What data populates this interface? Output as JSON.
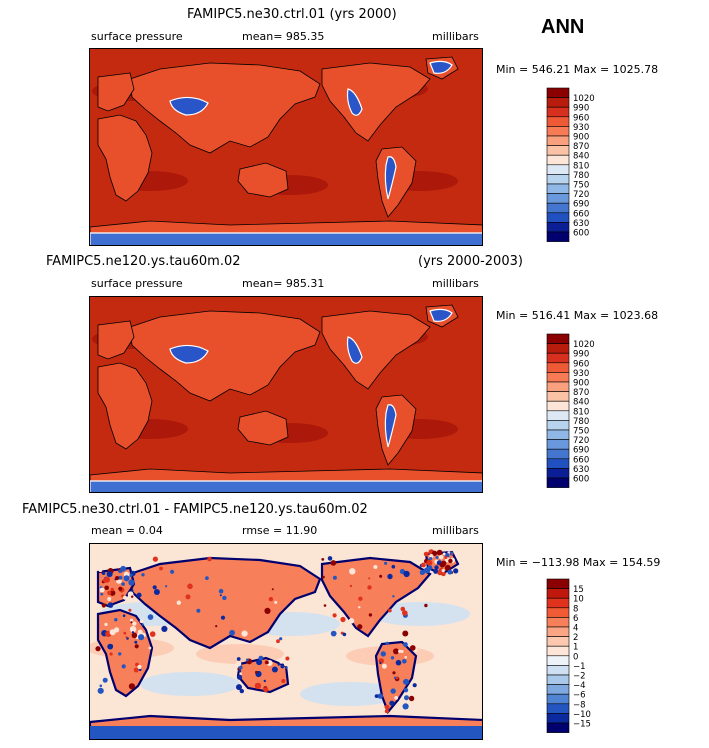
{
  "season": "ANN",
  "panels": [
    {
      "title_left": "FAMIPC5.ne30.ctrl.01 (yrs 2000)",
      "title_right": "",
      "sub_left": "surface pressure",
      "sub_mid": "mean=  985.35",
      "sub_right": "millibars",
      "minmax": "Min = 546.21  Max = 1025.78",
      "bg_color": "#c42a10",
      "levels": [
        "1020",
        "990",
        "960",
        "930",
        "900",
        "870",
        "840",
        "810",
        "780",
        "750",
        "720",
        "690",
        "660",
        "630",
        "600"
      ],
      "colors": [
        "#8b0000",
        "#b71c0c",
        "#d7301f",
        "#ee5a36",
        "#f77b55",
        "#f9a07e",
        "#fbc3a6",
        "#fde6d8",
        "#dce9f5",
        "#b8d3ee",
        "#8fb8e6",
        "#6a98dc",
        "#4476d0",
        "#2150c0",
        "#0b1e96",
        "#00006e"
      ]
    },
    {
      "title_left": "FAMIPC5.ne120.ys.tau60m.02",
      "title_right": "(yrs 2000-2003)",
      "sub_left": "surface pressure",
      "sub_mid": "mean=  985.31",
      "sub_right": "millibars",
      "minmax": "Min = 516.41  Max = 1023.68",
      "bg_color": "#c42a10",
      "levels": [
        "1020",
        "990",
        "960",
        "930",
        "900",
        "870",
        "840",
        "810",
        "780",
        "750",
        "720",
        "690",
        "660",
        "630",
        "600"
      ],
      "colors": [
        "#8b0000",
        "#b71c0c",
        "#d7301f",
        "#ee5a36",
        "#f77b55",
        "#f9a07e",
        "#fbc3a6",
        "#fde6d8",
        "#dce9f5",
        "#b8d3ee",
        "#8fb8e6",
        "#6a98dc",
        "#4476d0",
        "#2150c0",
        "#0b1e96",
        "#00006e"
      ]
    },
    {
      "title_left": "FAMIPC5.ne30.ctrl.01 - FAMIPC5.ne120.ys.tau60m.02",
      "title_right": "",
      "sub_left": "mean =    0.04",
      "sub_mid": "rmse =   11.90",
      "sub_right": "millibars",
      "minmax": "Min = −113.98  Max = 154.59",
      "bg_color": "#fbe6d6",
      "levels": [
        "15",
        "10",
        "8",
        "6",
        "4",
        "2",
        "1",
        "0",
        "−1",
        "−2",
        "−4",
        "−6",
        "−8",
        "−10",
        "−15"
      ],
      "colors": [
        "#8b0000",
        "#c0180c",
        "#e0321c",
        "#f05a34",
        "#f7805a",
        "#fba584",
        "#fcc9b0",
        "#fde6d8",
        "#eef3fa",
        "#cfe0f2",
        "#a9c8ea",
        "#7ea8df",
        "#5083d2",
        "#2456c2",
        "#0c2aa0",
        "#00006e"
      ]
    }
  ],
  "chart_data": [
    {
      "type": "heatmap",
      "title": "FAMIPC5.ne30.ctrl.01 (yrs 2000)",
      "variable": "surface pressure",
      "units": "millibars",
      "mean": 985.35,
      "min": 546.21,
      "max": 1025.78,
      "contour_levels": [
        600,
        630,
        660,
        690,
        720,
        750,
        780,
        810,
        840,
        870,
        900,
        930,
        960,
        990,
        1020
      ]
    },
    {
      "type": "heatmap",
      "title": "FAMIPC5.ne120.ys.tau60m.02 (yrs 2000-2003)",
      "variable": "surface pressure",
      "units": "millibars",
      "mean": 985.31,
      "min": 516.41,
      "max": 1023.68,
      "contour_levels": [
        600,
        630,
        660,
        690,
        720,
        750,
        780,
        810,
        840,
        870,
        900,
        930,
        960,
        990,
        1020
      ]
    },
    {
      "type": "heatmap",
      "title": "FAMIPC5.ne30.ctrl.01 - FAMIPC5.ne120.ys.tau60m.02",
      "units": "millibars",
      "mean": 0.04,
      "rmse": 11.9,
      "min": -113.98,
      "max": 154.59,
      "contour_levels": [
        -15,
        -10,
        -8,
        -6,
        -4,
        -2,
        -1,
        0,
        1,
        2,
        4,
        6,
        8,
        10,
        15
      ]
    }
  ]
}
